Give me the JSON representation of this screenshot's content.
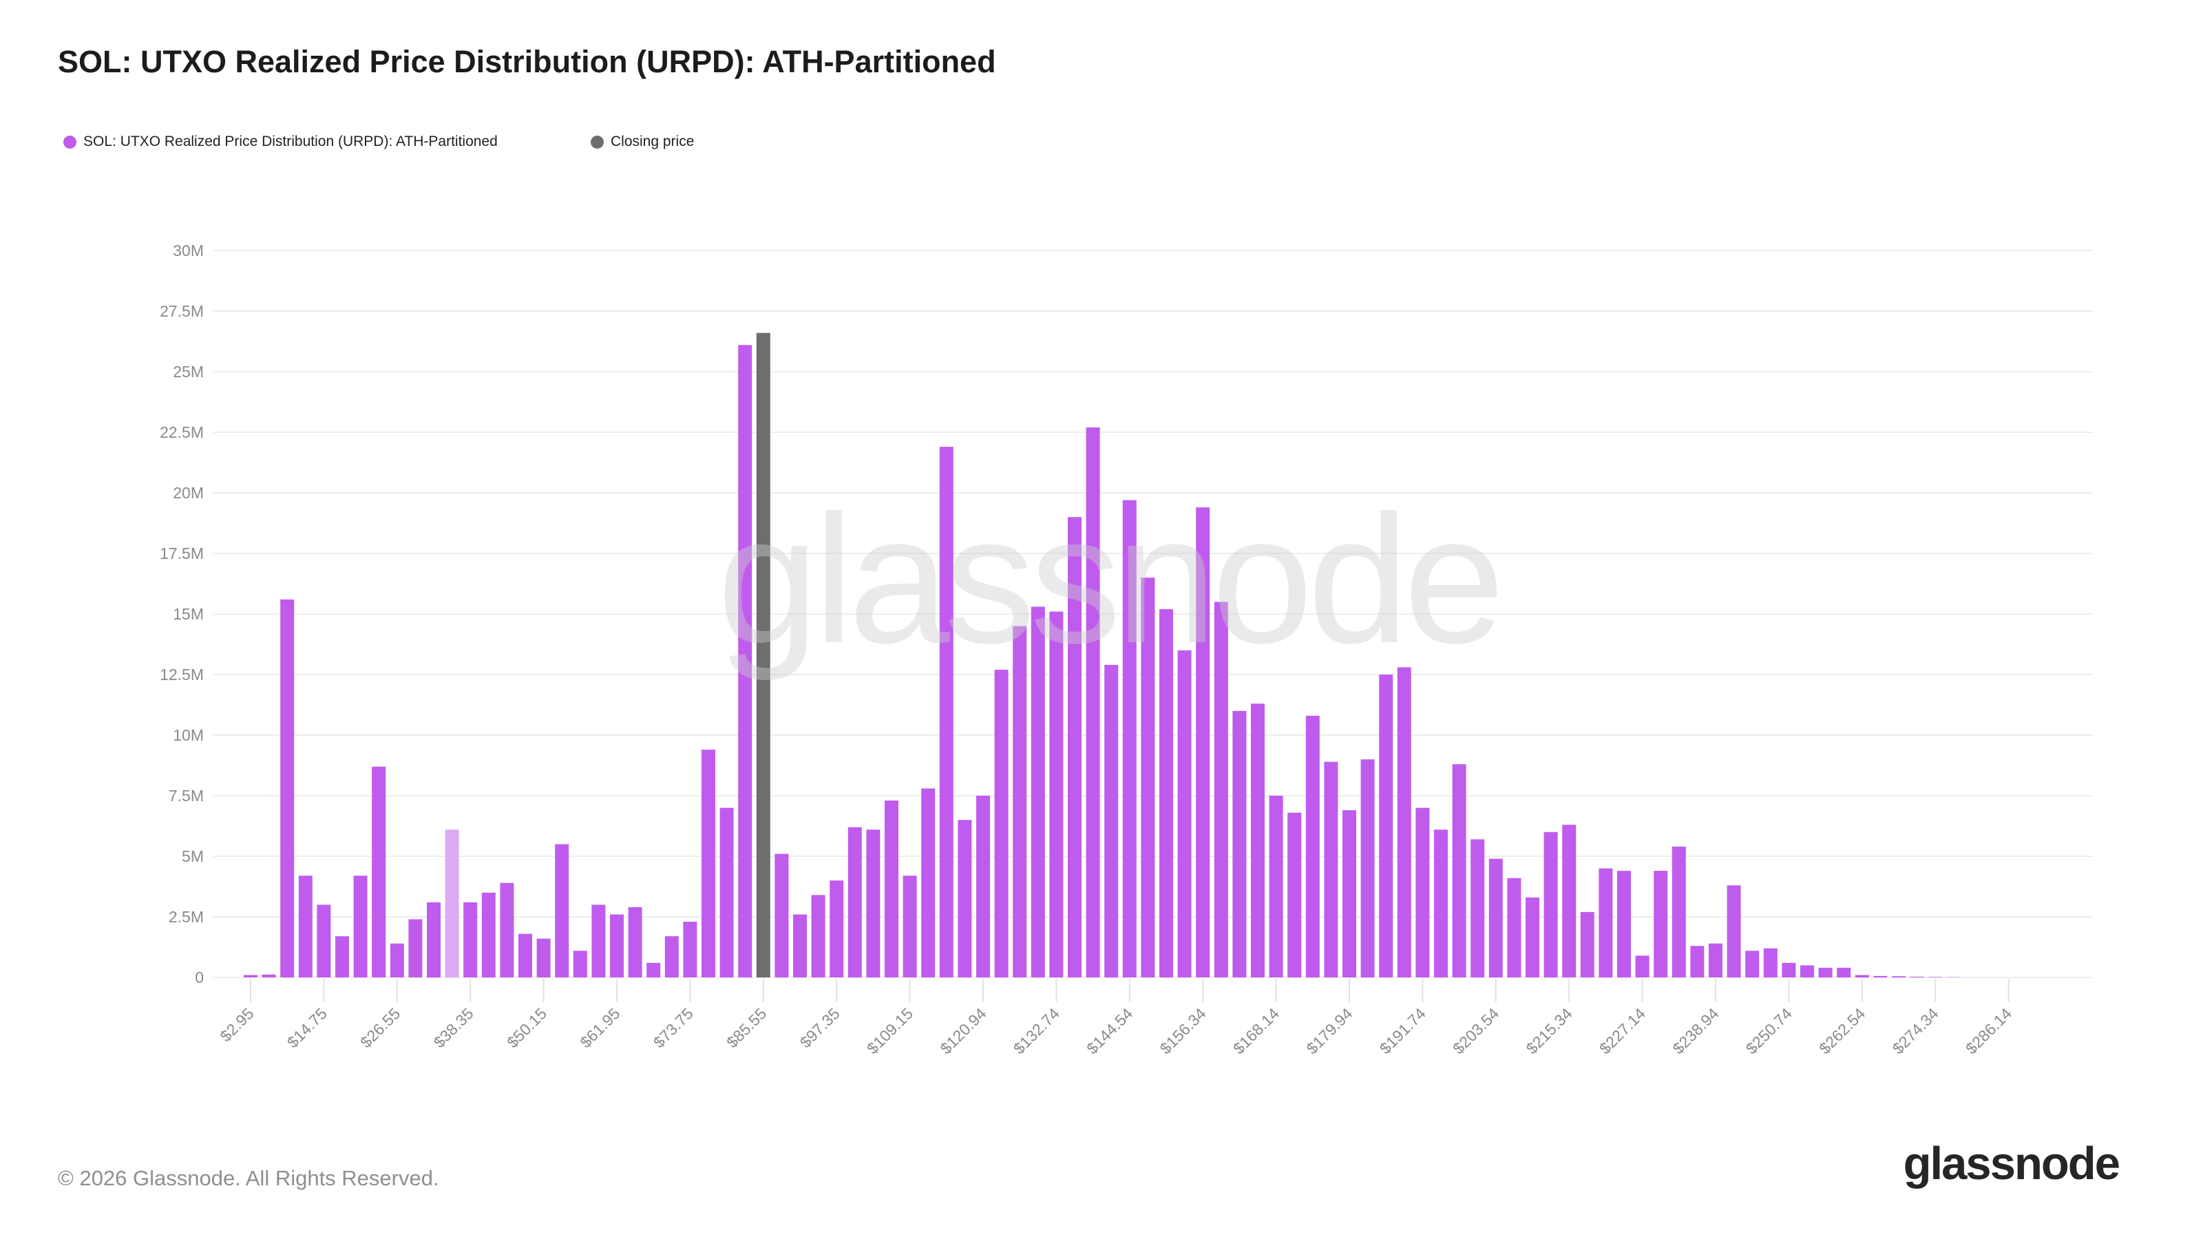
{
  "title": "SOL: UTXO Realized Price Distribution (URPD): ATH-Partitioned",
  "legend": [
    {
      "label": "SOL: UTXO Realized Price Distribution (URPD): ATH-Partitioned",
      "color": "#bf5ced"
    },
    {
      "label": "Closing price",
      "color": "#6e6e6e"
    }
  ],
  "watermark": "glassnode",
  "footer": {
    "copyright": "© 2026 Glassnode. All Rights Reserved.",
    "brand": "glassnode"
  },
  "chart_data": {
    "type": "bar",
    "title": "SOL: UTXO Realized Price Distribution (URPD): ATH-Partitioned",
    "xlabel": "",
    "ylabel": "",
    "unit": "SOL supply (millions)",
    "grid": "horizontal",
    "ylim_millions": [
      0,
      30
    ],
    "y_tick_labels": [
      "0",
      "2.5M",
      "5M",
      "7.5M",
      "10M",
      "12.5M",
      "15M",
      "17.5M",
      "20M",
      "22.5M",
      "25M",
      "27.5M",
      "30M"
    ],
    "y_tick_values_millions": [
      0,
      2.5,
      5,
      7.5,
      10,
      12.5,
      15,
      17.5,
      20,
      22.5,
      25,
      27.5,
      30
    ],
    "bin_count": 97,
    "x_tick_step": 4,
    "x_tick_labels": [
      "$2.95",
      "$14.75",
      "$26.55",
      "$38.35",
      "$50.15",
      "$61.95",
      "$73.75",
      "$85.55",
      "$97.35",
      "$109.15",
      "$120.94",
      "$132.74",
      "$144.54",
      "$156.34",
      "$168.14",
      "$179.94",
      "$191.74",
      "$203.54",
      "$215.34",
      "$227.14",
      "$238.94",
      "$250.74",
      "$262.54",
      "$274.34",
      "$286.14"
    ],
    "values_millions": [
      0.1,
      0.12,
      15.6,
      4.2,
      3.0,
      1.7,
      4.2,
      8.7,
      1.4,
      2.4,
      3.1,
      6.1,
      3.1,
      3.5,
      3.9,
      1.8,
      1.6,
      5.5,
      1.1,
      3.0,
      2.6,
      2.9,
      0.6,
      1.7,
      2.3,
      9.4,
      7.0,
      26.1,
      26.6,
      5.1,
      2.6,
      3.4,
      4.0,
      6.2,
      6.1,
      7.3,
      4.2,
      7.8,
      21.9,
      6.5,
      7.5,
      12.7,
      14.5,
      15.3,
      15.1,
      19.0,
      22.7,
      12.9,
      19.7,
      16.5,
      15.2,
      13.5,
      19.4,
      15.5,
      11.0,
      11.3,
      7.5,
      6.8,
      10.8,
      8.9,
      6.9,
      9.0,
      12.5,
      12.8,
      7.0,
      6.1,
      8.8,
      5.7,
      4.9,
      4.1,
      3.3,
      6.0,
      6.3,
      2.7,
      4.5,
      4.4,
      0.9,
      4.4,
      5.4,
      1.3,
      1.4,
      3.8,
      1.1,
      1.2,
      0.6,
      0.5,
      0.4,
      0.4,
      0.1,
      0.06,
      0.05,
      0.03,
      0.02,
      0.01,
      0,
      0,
      0
    ],
    "pale_bar_index": 11,
    "closing_price": {
      "index": 28,
      "value_millions": 26.6
    },
    "legend_position": "top-left",
    "colors": {
      "bar": "#bf5ced",
      "pale_bar": "#dcabf4",
      "closing_bar": "#6e6e6e",
      "grid": "#eeeeee",
      "tick_mark": "#e2e2e2",
      "axis_text": "#8a8a8a"
    }
  }
}
